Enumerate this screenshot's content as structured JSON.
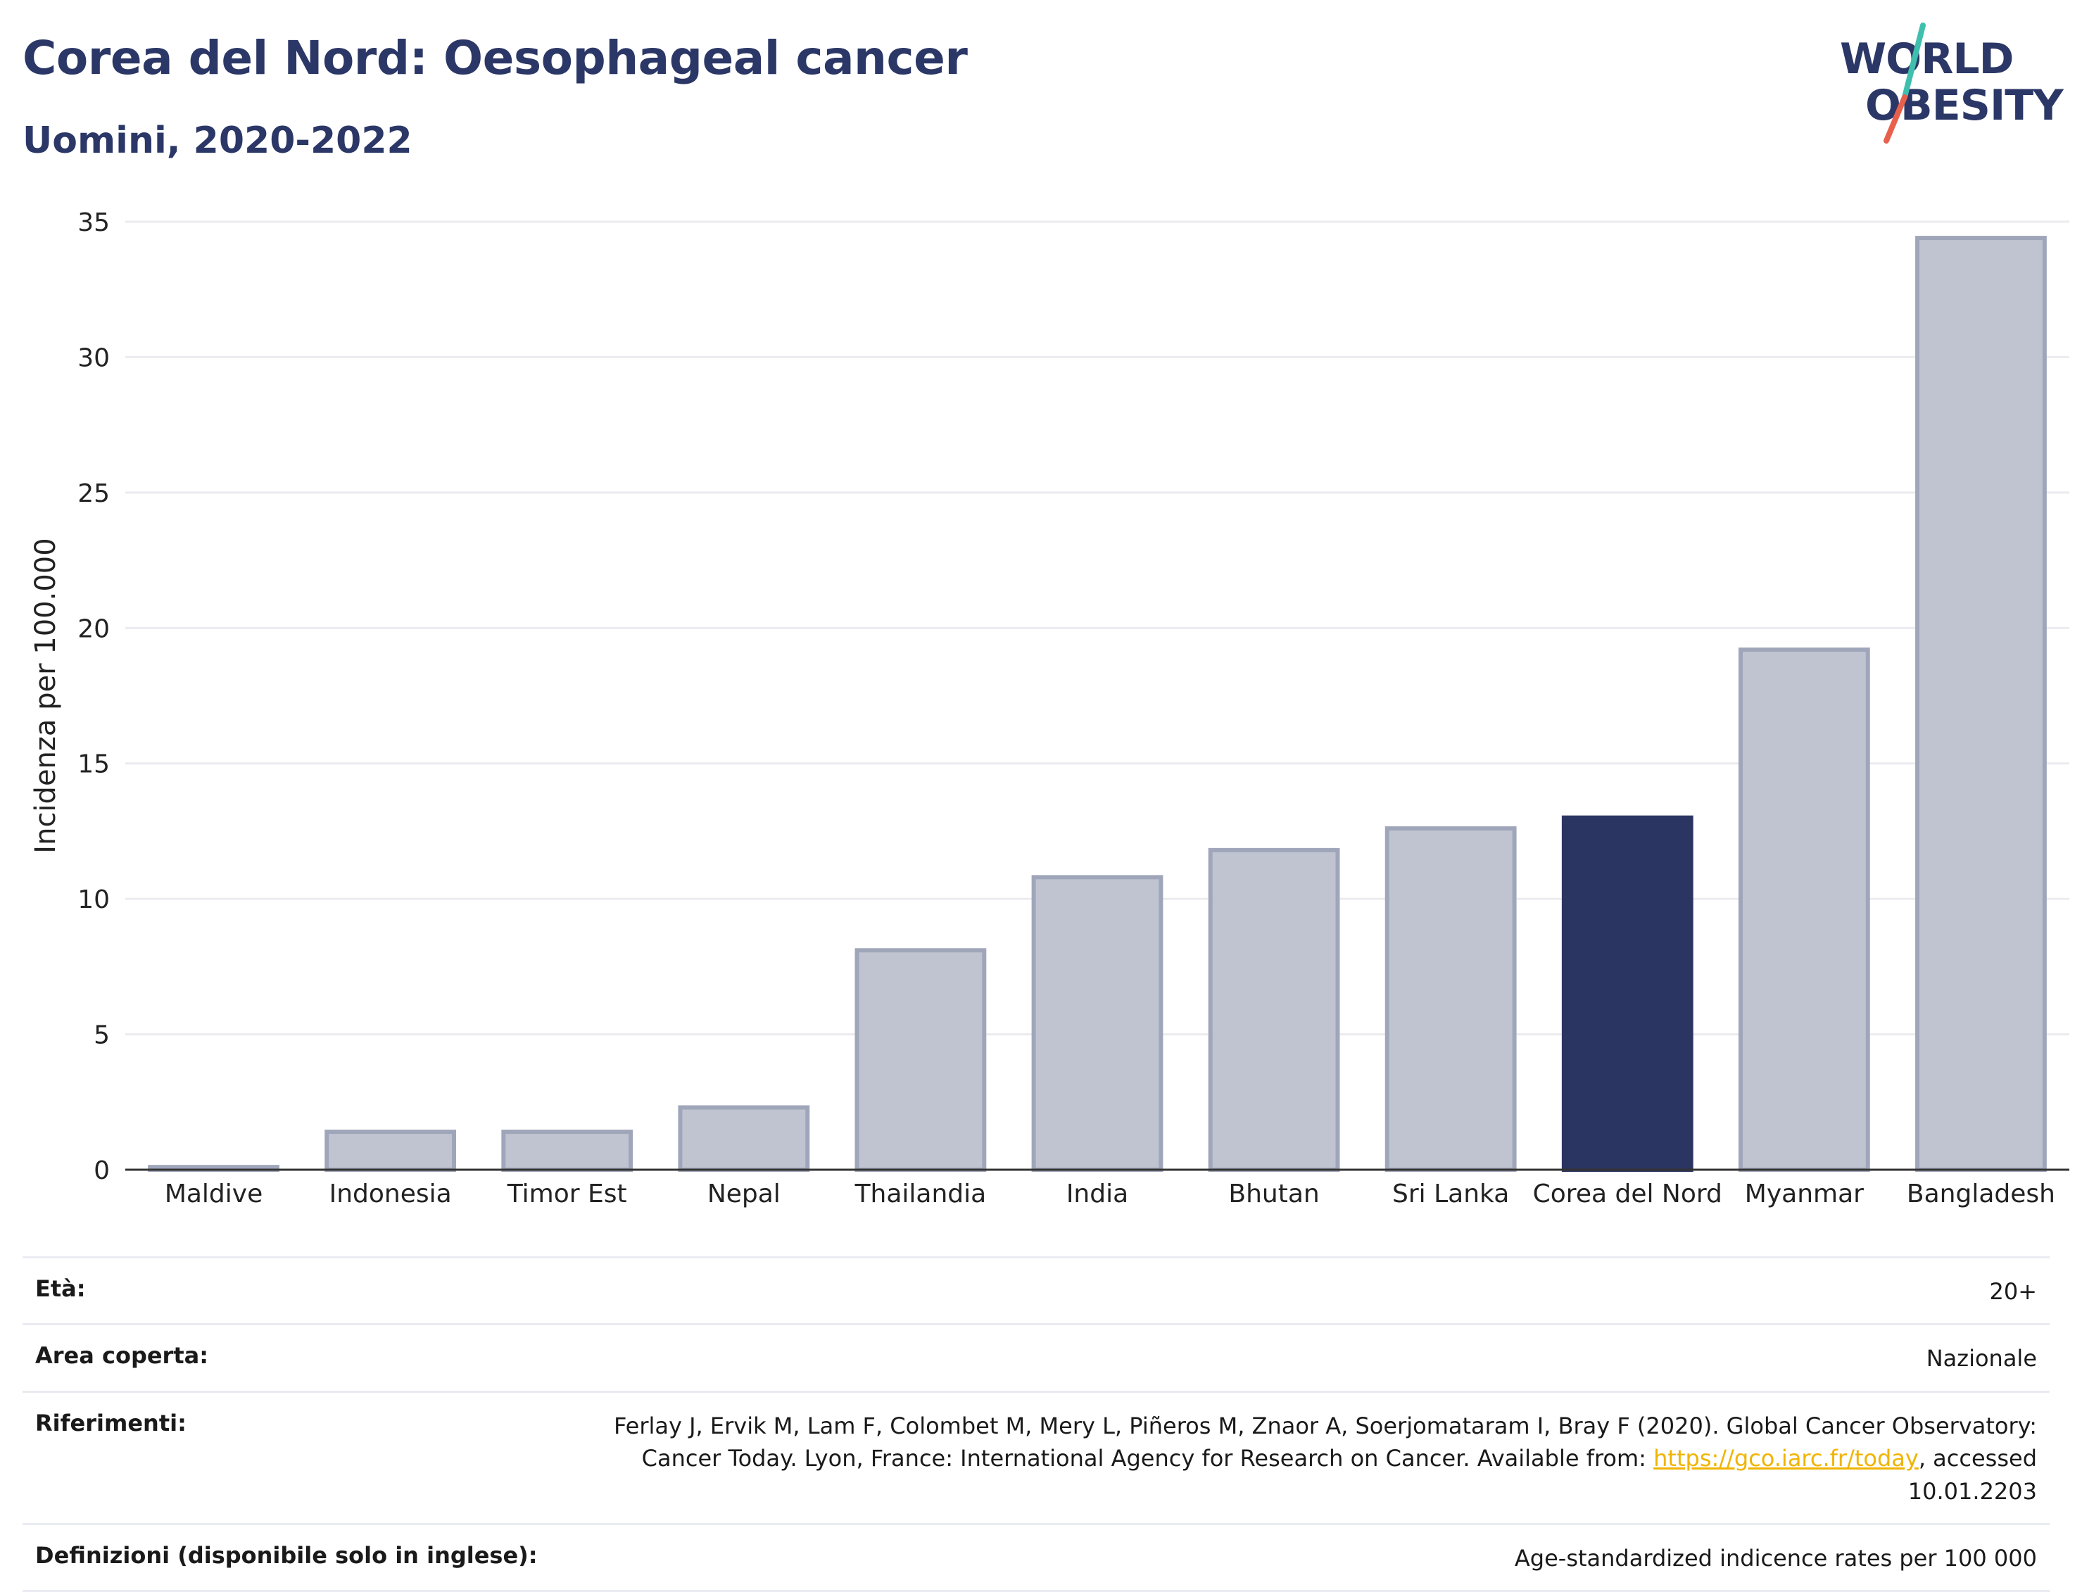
{
  "header": {
    "title": "Corea del Nord: Oesophageal cancer",
    "subtitle": "Uomini, 2020-2022"
  },
  "logo": {
    "line1": "WORLD",
    "line2": "OBESITY",
    "slash_colors": [
      "#3fbfad",
      "#e8604c"
    ]
  },
  "chart_data": {
    "type": "bar",
    "categories": [
      "Maldive",
      "Indonesia",
      "Timor Est",
      "Nepal",
      "Thailandia",
      "India",
      "Bhutan",
      "Sri Lanka",
      "Corea del Nord",
      "Myanmar",
      "Bangladesh"
    ],
    "values": [
      0.1,
      1.4,
      1.4,
      2.3,
      8.1,
      10.8,
      11.8,
      12.6,
      13.0,
      19.2,
      34.4
    ],
    "highlight": "Corea del Nord",
    "ylabel": "Incidenza per 100.000",
    "xlabel": "",
    "ylim": [
      0,
      35
    ],
    "yticks": [
      0,
      5,
      10,
      15,
      20,
      25,
      30,
      35
    ],
    "grid": true,
    "colors": {
      "bar": "#c0c4d1",
      "bar_edge": "#a0a6ba",
      "highlight": "#2b3561",
      "grid": "#ebebf0",
      "axis": "#333333"
    }
  },
  "meta": {
    "age": {
      "label": "Età:",
      "value": "20+"
    },
    "area": {
      "label": "Area coperta:",
      "value": "Nazionale"
    },
    "refs": {
      "label": "Riferimenti:",
      "text_before": "Ferlay J, Ervik M, Lam F, Colombet M, Mery L, Piñeros M, Znaor A, Soerjomataram I, Bray F (2020). Global Cancer Observatory: Cancer Today. Lyon, France: International Agency for Research on Cancer. Available from: ",
      "link": "https://gco.iarc.fr/today",
      "text_after": ", accessed 10.01.2203"
    },
    "defs": {
      "label": "Definizioni (disponibile solo in inglese):",
      "value": "Age-standardized indicence rates per 100 000"
    }
  }
}
